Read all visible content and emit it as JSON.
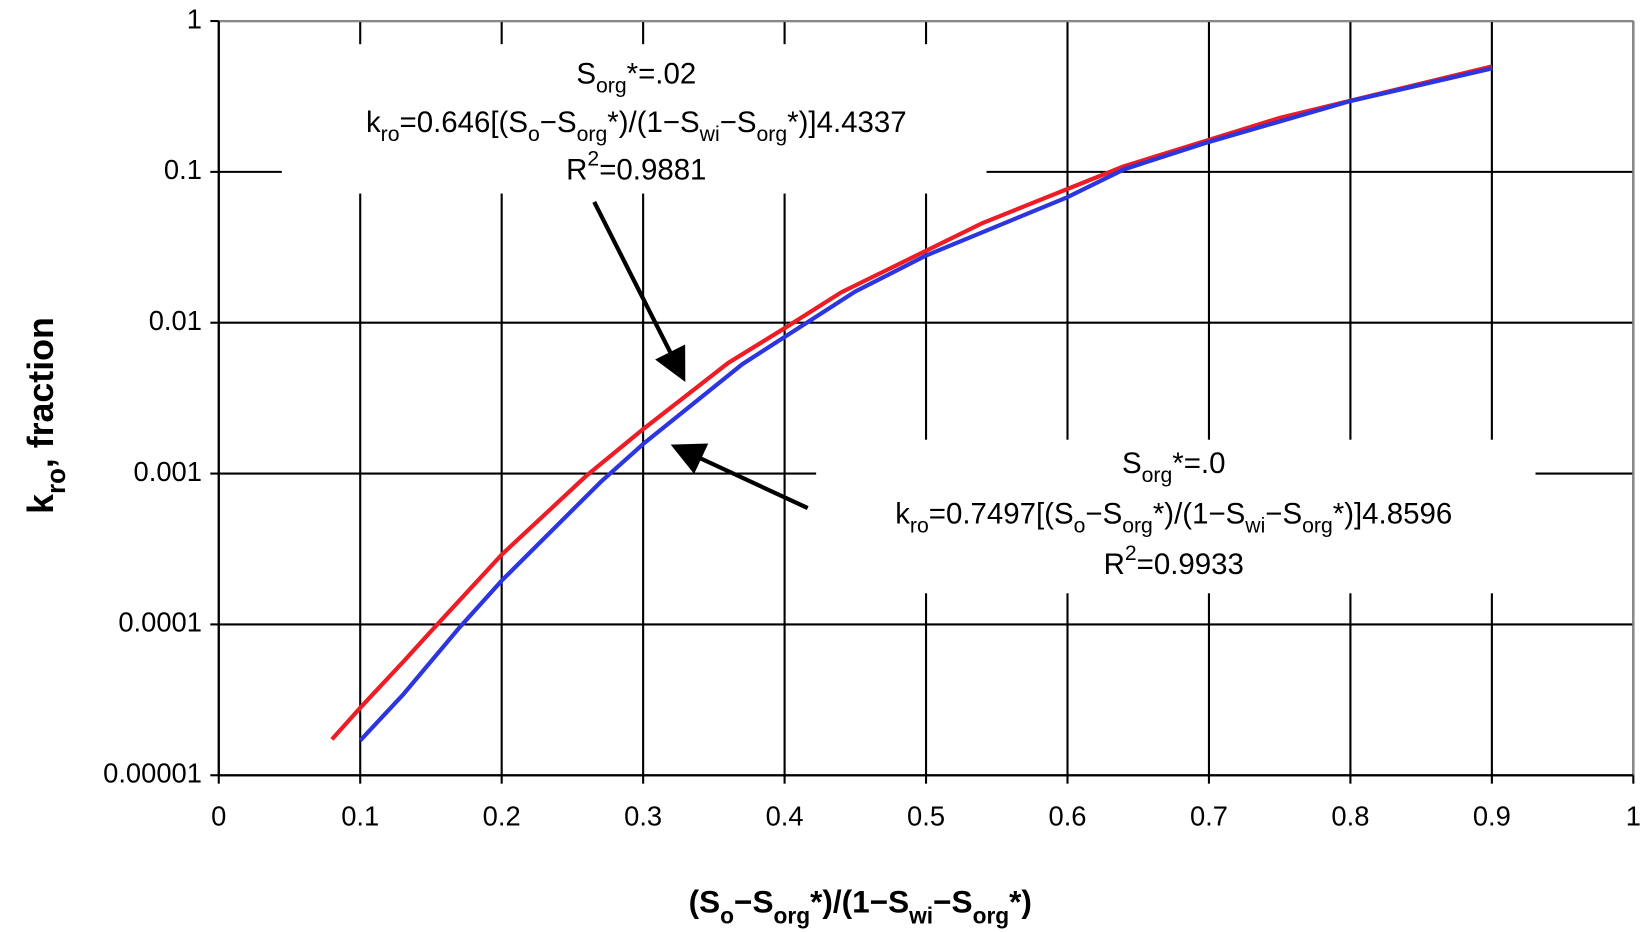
{
  "chart_data": {
    "type": "line",
    "log_y": true,
    "grid": true,
    "xlim": [
      0,
      1
    ],
    "xticks": [
      0,
      0.1,
      0.2,
      0.3,
      0.4,
      0.5,
      0.6,
      0.7,
      0.8,
      0.9,
      1
    ],
    "ylim": [
      1e-05,
      1
    ],
    "yticks": [
      {
        "value": 1e-05,
        "label": "0.00001"
      },
      {
        "value": 0.0001,
        "label": "0.0001"
      },
      {
        "value": 0.001,
        "label": "0.001"
      },
      {
        "value": 0.01,
        "label": "0.01"
      },
      {
        "value": 0.1,
        "label": "0.1"
      },
      1
    ],
    "y_label": [
      {
        "text": "k"
      },
      {
        "text": "ro",
        "shift": "sub"
      },
      {
        "text": ", fraction"
      }
    ],
    "x_label": [
      {
        "text": "(S"
      },
      {
        "text": "o",
        "shift": "sub"
      },
      {
        "text": "−S"
      },
      {
        "text": "org",
        "shift": "sub"
      },
      {
        "text": "*)/(1−S"
      },
      {
        "text": "wi",
        "shift": "sub"
      },
      {
        "text": "−S"
      },
      {
        "text": "org",
        "shift": "sub"
      },
      {
        "text": "*)"
      }
    ],
    "series": [
      {
        "color": "#ee1c25",
        "x": [
          0.08,
          0.1,
          0.13,
          0.15,
          0.2,
          0.26,
          0.3,
          0.36,
          0.4,
          0.44,
          0.54,
          0.64,
          0.75,
          0.9
        ],
        "values": [
          1.73e-05,
          2.8e-05,
          5.6e-05,
          9e-05,
          0.00029,
          0.00097,
          0.00197,
          0.0054,
          0.0092,
          0.0159,
          0.0458,
          0.109,
          0.228,
          0.5
        ]
      },
      {
        "color": "#2b35e0",
        "x": [
          0.1,
          0.13,
          0.17,
          0.2,
          0.27,
          0.3,
          0.37,
          0.45,
          0.5,
          0.6,
          0.64,
          0.7,
          0.8,
          0.9
        ],
        "values": [
          1.7e-05,
          3.4e-05,
          9.5e-05,
          0.000195,
          0.00088,
          0.00157,
          0.0053,
          0.0161,
          0.0279,
          0.068,
          0.104,
          0.158,
          0.295,
          0.485
        ]
      }
    ],
    "annotations": [
      {
        "lines": [
          [
            {
              "text": "S"
            },
            {
              "text": "org",
              "shift": "sub"
            },
            {
              "text": "*=.02"
            }
          ],
          [
            {
              "text": "k"
            },
            {
              "text": "ro",
              "shift": "sub"
            },
            {
              "text": "=0.646[(S"
            },
            {
              "text": "o",
              "shift": "sub"
            },
            {
              "text": "−S"
            },
            {
              "text": "org",
              "shift": "sub"
            },
            {
              "text": "*)/(1−S"
            },
            {
              "text": "wi",
              "shift": "sub"
            },
            {
              "text": "−S"
            },
            {
              "text": "org",
              "shift": "sub"
            },
            {
              "text": "*)]4.4337"
            }
          ],
          [
            {
              "text": "R"
            },
            {
              "text": "2",
              "shift": "super"
            },
            {
              "text": "=0.9881"
            }
          ]
        ]
      },
      {
        "lines": [
          [
            {
              "text": "S"
            },
            {
              "text": "org",
              "shift": "sub"
            },
            {
              "text": "*=.0"
            }
          ],
          [
            {
              "text": "k"
            },
            {
              "text": "ro",
              "shift": "sub"
            },
            {
              "text": "=0.7497[(S"
            },
            {
              "text": "o",
              "shift": "sub"
            },
            {
              "text": "−S"
            },
            {
              "text": "org",
              "shift": "sub"
            },
            {
              "text": "*)/(1−S"
            },
            {
              "text": "wi",
              "shift": "sub"
            },
            {
              "text": "−S"
            },
            {
              "text": "org",
              "shift": "sub"
            },
            {
              "text": "*)]4.8596"
            }
          ],
          [
            {
              "text": "R"
            },
            {
              "text": "2",
              "shift": "super"
            },
            {
              "text": "=0.9933"
            }
          ]
        ]
      }
    ]
  }
}
